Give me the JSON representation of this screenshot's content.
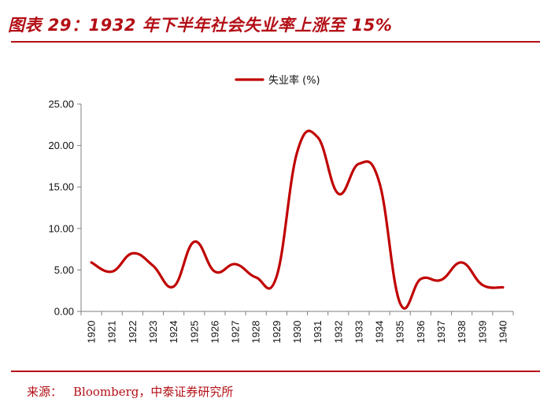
{
  "figure": {
    "title": "图表 29：1932 年下半年社会失业率上涨至 15%",
    "source_label": "来源：",
    "source_text": "Bloomberg，中泰证券研究所"
  },
  "colors": {
    "accent": "#b30f16",
    "line": "#c00000",
    "axis": "#7f7f7f",
    "text": "#111111"
  },
  "chart_data": {
    "type": "line",
    "title": "",
    "xlabel": "",
    "ylabel": "",
    "legend_position": "top-center",
    "grid": false,
    "ylim": [
      0,
      25
    ],
    "yticks": [
      "0.00",
      "5.00",
      "10.00",
      "15.00",
      "20.00",
      "25.00"
    ],
    "categories": [
      "1920",
      "1921",
      "1922",
      "1923",
      "1924",
      "1925",
      "1926",
      "1927",
      "1928",
      "1929",
      "1930",
      "1931",
      "1932",
      "1933",
      "1934",
      "1935",
      "1936",
      "1937",
      "1938",
      "1939",
      "1940"
    ],
    "series": [
      {
        "name": "失业率 (%)",
        "values": [
          5.9,
          4.8,
          7.0,
          5.5,
          3.0,
          8.4,
          4.8,
          5.7,
          4.1,
          4.2,
          19.2,
          21.0,
          14.2,
          17.8,
          15.5,
          1.0,
          3.9,
          3.8,
          5.9,
          3.2,
          2.9
        ]
      }
    ]
  }
}
